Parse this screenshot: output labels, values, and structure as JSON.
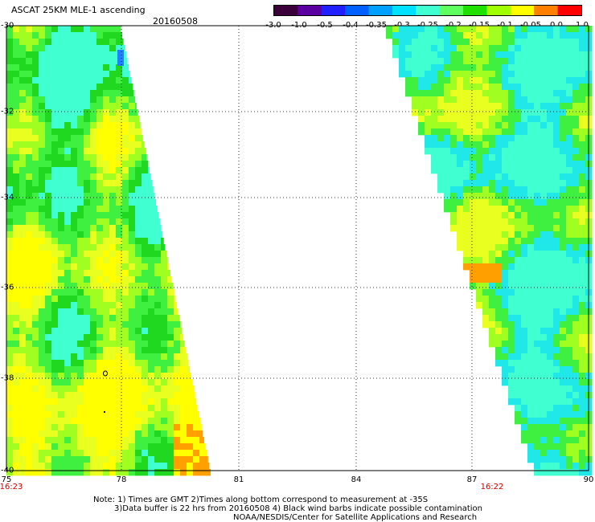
{
  "header": {
    "title": "ASCAT 25KM MLE-1 ascending",
    "date": "20160508"
  },
  "colorbar": {
    "ticks": [
      "-3.0",
      "-1.0",
      "-0.5",
      "-0.4",
      "-0.35",
      "-0.3",
      "-0.25",
      "-0.2",
      "-0.15",
      "-0.1",
      "-0.05",
      "0.0",
      "1.0"
    ],
    "colors": [
      "#3a003a",
      "#5a00a0",
      "#2020ff",
      "#0060ff",
      "#00a0ff",
      "#00e0ff",
      "#40ffd0",
      "#60ff60",
      "#20e000",
      "#a0ff00",
      "#ffff00",
      "#ff8000",
      "#ff0000"
    ]
  },
  "axes": {
    "lat_labels": [
      "-30",
      "-32",
      "-34",
      "-36",
      "-38",
      "-40"
    ],
    "lon_labels": [
      "75",
      "78",
      "81",
      "84",
      "87",
      "90"
    ]
  },
  "pass_times": {
    "left": "16:23",
    "right": "16:22"
  },
  "notes": {
    "line1": "Note: 1) Times are GMT 2)Times along bottom correspond to measurement at -35S",
    "line2": "3)Data buffer is 22 hrs from 20160508 4) Black wind barbs indicate possible contamination",
    "line3": "NOAA/NESDIS/Center for Satellite Applications and Research"
  }
}
